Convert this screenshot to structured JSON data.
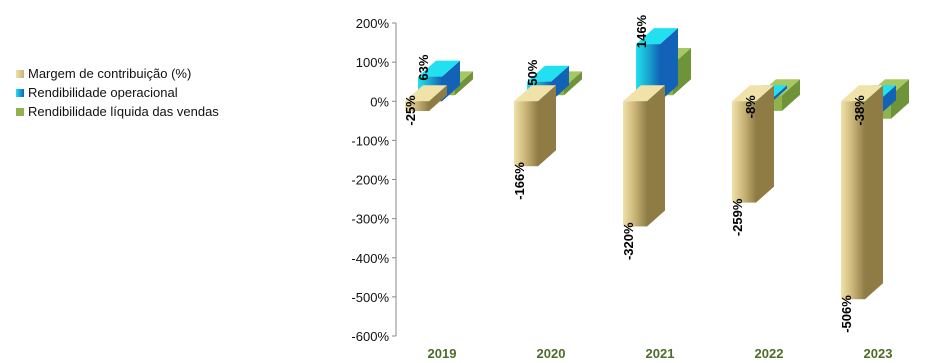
{
  "chart_data": {
    "type": "bar",
    "categories": [
      "2019",
      "2020",
      "2021",
      "2022",
      "2023"
    ],
    "series": [
      {
        "name": "Margem de contribuição (%)",
        "values": [
          -25,
          -166,
          -320,
          -259,
          -506
        ],
        "labels": [
          "-25%",
          "-166%",
          "-320%",
          "-259%",
          "-506%"
        ]
      },
      {
        "name": "Rendibilidade operacional",
        "values": [
          63,
          50,
          146,
          -8,
          -38
        ],
        "labels": [
          "63%",
          "50%",
          "146%",
          "-8%",
          "-38%"
        ]
      },
      {
        "name": "Rendibilidade líquida das vendas",
        "values": [
          20,
          20,
          80,
          -40,
          -60
        ],
        "labels": []
      }
    ],
    "y_ticks": [
      "200%",
      "100%",
      "0%",
      "-100%",
      "-200%",
      "-300%",
      "-400%",
      "-500%",
      "-600%"
    ],
    "ylim": [
      -600,
      200
    ],
    "legend_position": "left",
    "colors": {
      "series0_front": "#c9b377",
      "series0_light": "#f0e2a8",
      "series0_dark": "#8f7c45",
      "series1_front": "#1aa7cf",
      "series1_light": "#22e0f0",
      "series1_dark": "#1262b8",
      "series2_front": "#8fb24d",
      "series2_light": "#a6c762",
      "series2_dark": "#6f9338",
      "category_text": "#4f6b2a"
    }
  }
}
